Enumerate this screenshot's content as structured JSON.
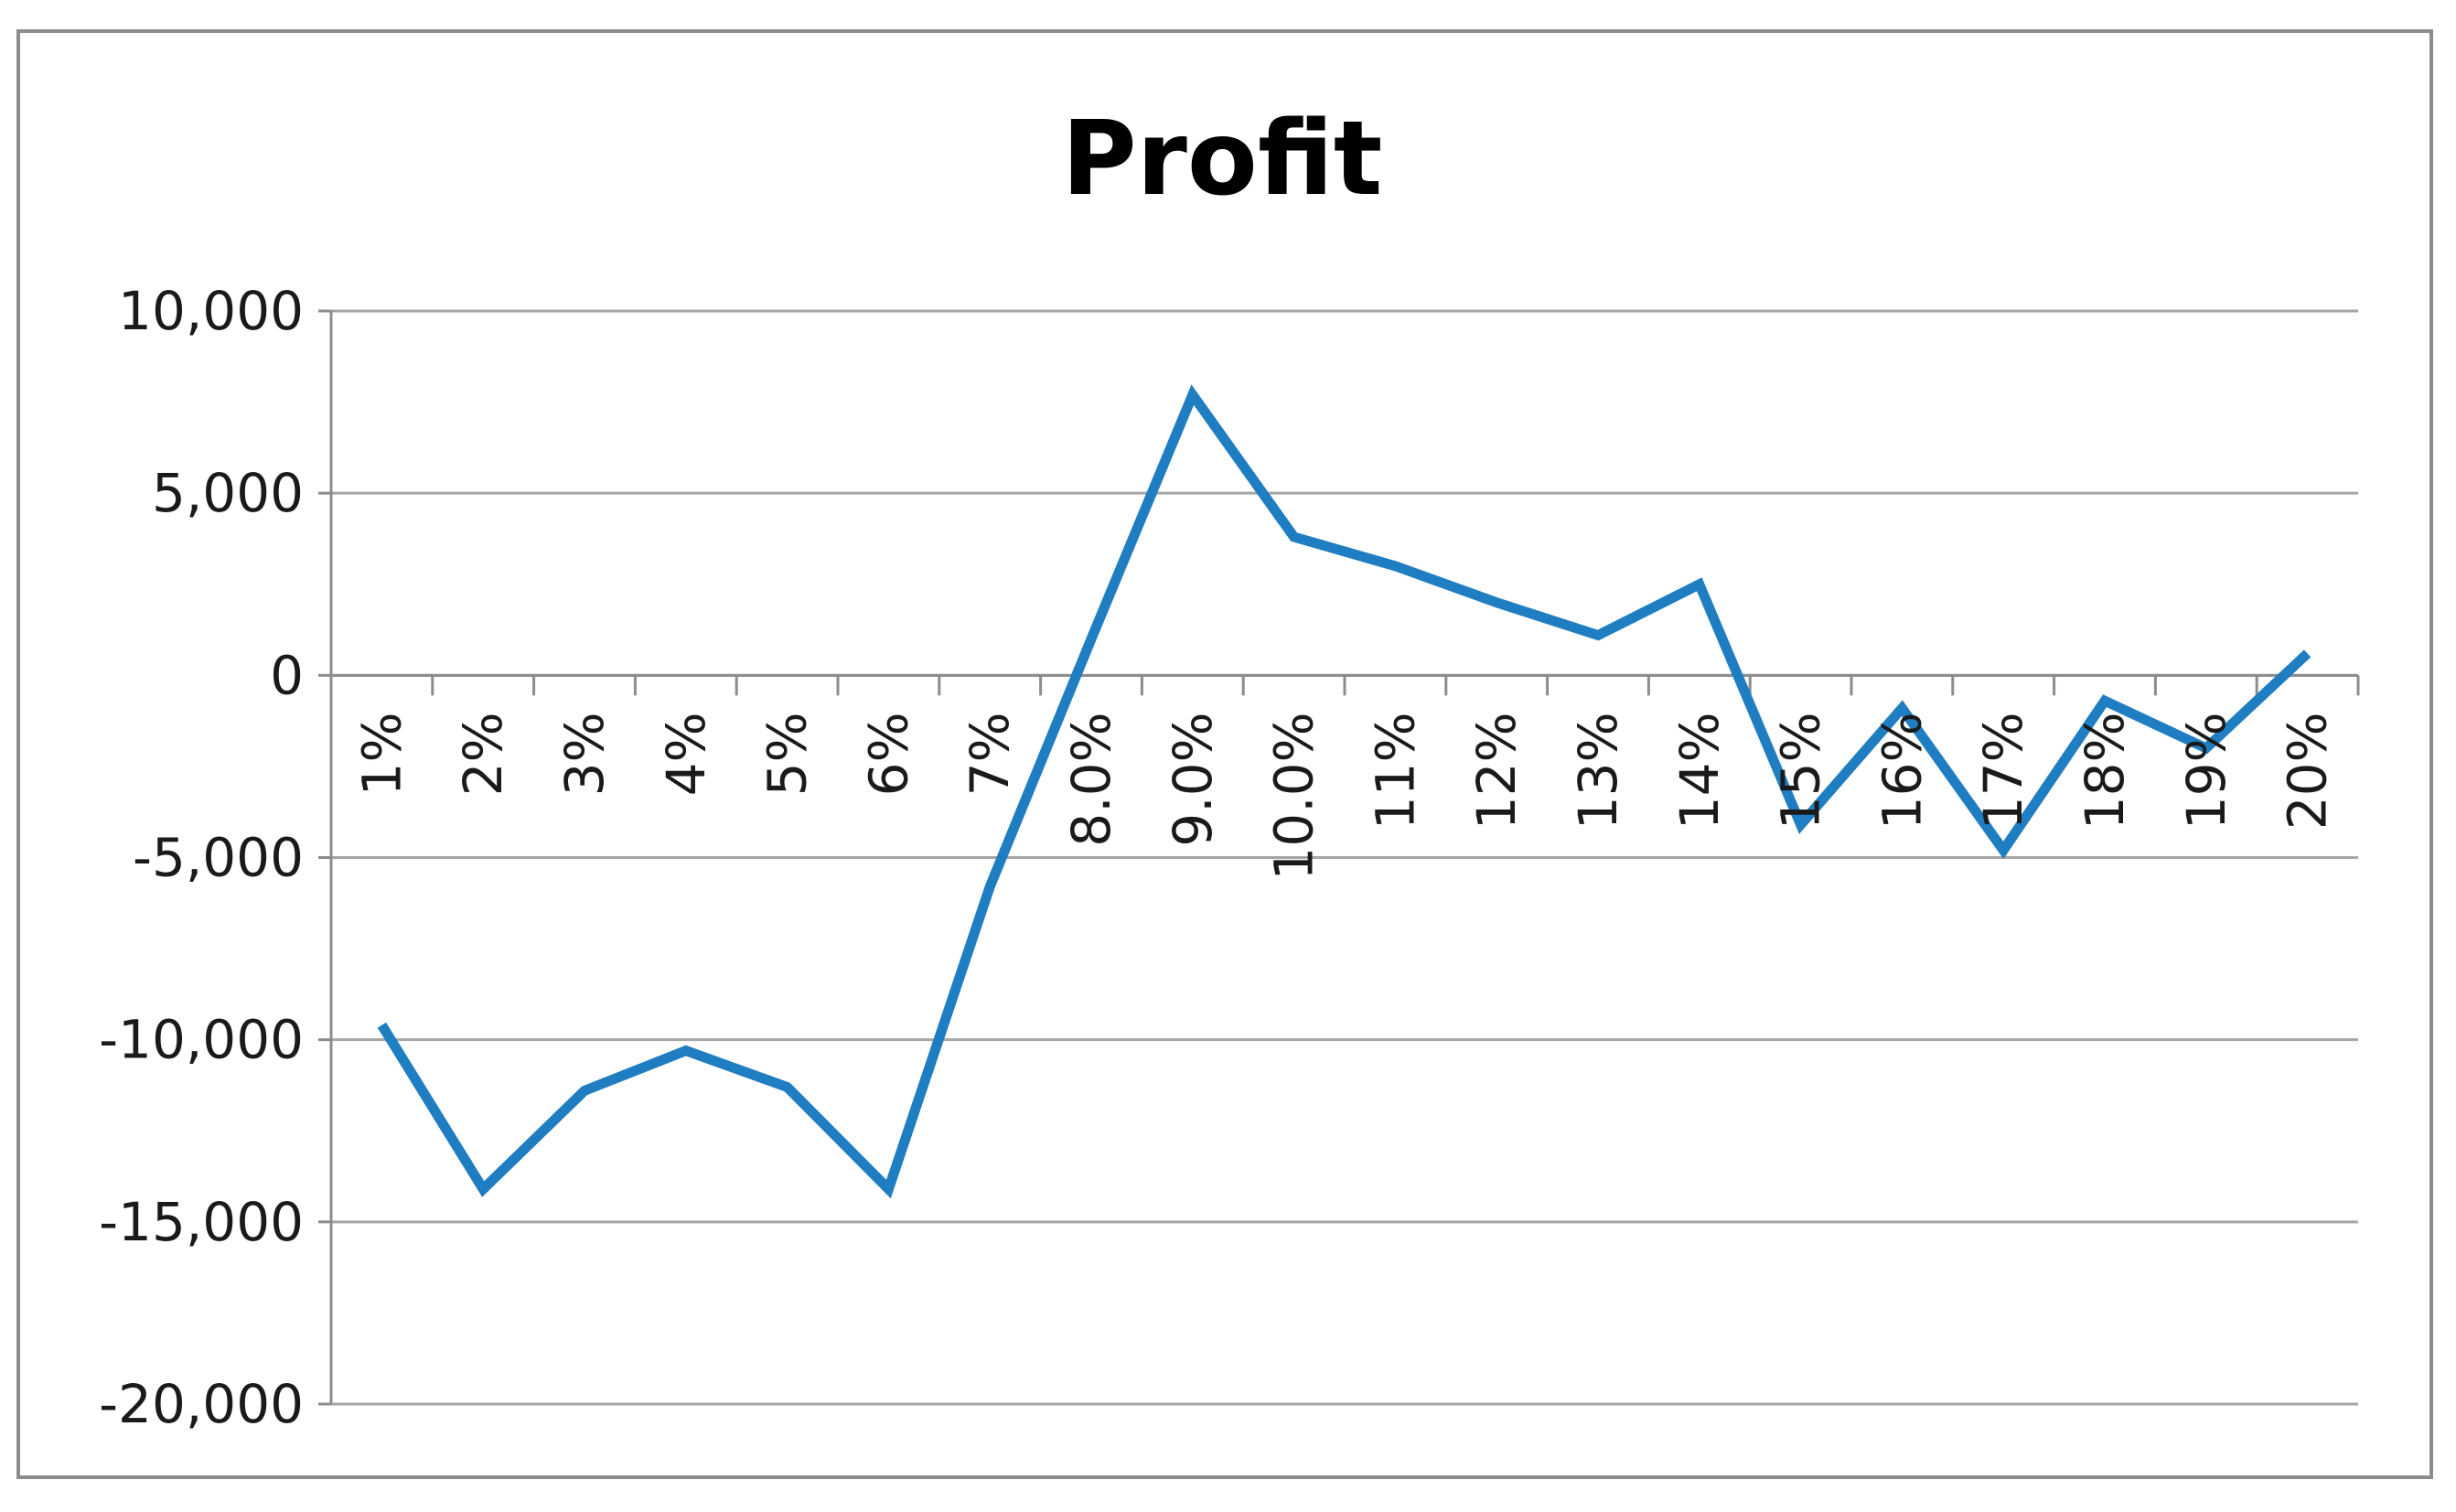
{
  "chart_data": {
    "type": "line",
    "title": "Profit",
    "xlabel": "",
    "ylabel": "",
    "categories": [
      "1%",
      "2%",
      "3%",
      "4%",
      "5%",
      "6%",
      "7%",
      "8.0%",
      "9.0%",
      "10.0%",
      "11%",
      "12%",
      "13%",
      "14%",
      "15%",
      "16%",
      "17%",
      "18%",
      "19%",
      "20%"
    ],
    "series": [
      {
        "values": [
          -9600,
          -14100,
          -11400,
          -10300,
          -11300,
          -14100,
          -5800,
          1000,
          7700,
          3800,
          3000,
          2000,
          1100,
          2500,
          -4100,
          -900,
          -4800,
          -700,
          -2000,
          600
        ],
        "color": "#1f7dc1"
      }
    ],
    "ylim": [
      -20000,
      10000
    ],
    "yticks": [
      10000,
      5000,
      0,
      -5000,
      -10000,
      -15000,
      -20000
    ],
    "ytick_labels": [
      "10,000",
      "5,000",
      "0",
      "-5,000",
      "-10,000",
      "-15,000",
      "-20,000"
    ],
    "grid": true,
    "legend": "none"
  }
}
